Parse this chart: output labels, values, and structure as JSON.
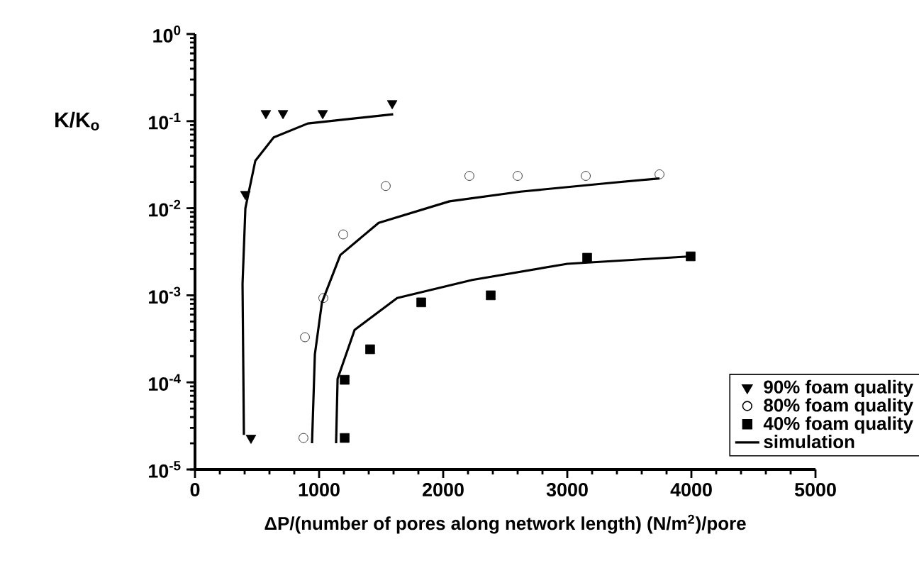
{
  "chart_data": {
    "type": "scatter",
    "xlabel": "ΔP/(number of pores along network length)  (N/m$^{2}$)/pore",
    "ylabel": "K/K$_{o}$",
    "log": "y",
    "xlim": [
      0,
      5000
    ],
    "xticks": [
      0,
      1000,
      2000,
      3000,
      4000,
      5000
    ],
    "ylim": [
      1e-05,
      1
    ],
    "yticks": [
      {
        "value": 1e-05,
        "label": "10$^{-5}$"
      },
      {
        "value": 0.0001,
        "label": "10$^{-4}$"
      },
      {
        "value": 0.001,
        "label": "10$^{-3}$"
      },
      {
        "value": 0.01,
        "label": "10$^{-2}$"
      },
      {
        "value": 0.1,
        "label": "10$^{-1}$"
      },
      {
        "value": 1,
        "label": "10$^{0}$"
      }
    ],
    "grid": false,
    "legend": "bottom right",
    "series": [
      {
        "name": "90% foam quality",
        "marker": "triangle",
        "color": "#000000",
        "x": [
          571,
          709,
          1029,
          1589,
          406,
          451
        ],
        "values": [
          0.123,
          0.123,
          0.123,
          0.16,
          0.0145,
          2.3e-05
        ]
      },
      {
        "name": "80% foam quality",
        "marker": "circle",
        "color": "#000000",
        "x": [
          874,
          886,
          1034,
          1194,
          1537,
          2211,
          2600,
          3149,
          3743
        ],
        "values": [
          2.3e-05,
          0.00033,
          0.00093,
          0.005,
          0.018,
          0.0235,
          0.0235,
          0.0235,
          0.0245
        ]
      },
      {
        "name": "40% foam quality",
        "marker": "square",
        "color": "#000000",
        "x": [
          1206,
          1206,
          1411,
          1823,
          2383,
          3160,
          3994
        ],
        "values": [
          2.3e-05,
          0.000107,
          0.00024,
          0.00083,
          0.001,
          0.0027,
          0.0028
        ]
      },
      {
        "name": "simulation",
        "type": "line",
        "marker": "none",
        "line_style": "solid",
        "color": "#000000",
        "x": [
          1597,
          909,
          634,
          486,
          406,
          383,
          394
        ],
        "values": [
          0.12,
          0.094,
          0.065,
          0.035,
          0.01,
          0.00135,
          2.5e-05
        ]
      },
      {
        "type": "line",
        "marker": "none",
        "line_style": "solid",
        "color": "#000000",
        "x": [
          943,
          966,
          1023,
          1171,
          1480,
          2051,
          2623,
          3343,
          3743
        ],
        "values": [
          2e-05,
          0.00021,
          0.00083,
          0.0029,
          0.0068,
          0.012,
          0.0155,
          0.0195,
          0.022
        ]
      },
      {
        "type": "line",
        "marker": "none",
        "line_style": "solid",
        "color": "#000000",
        "x": [
          1137,
          1149,
          1286,
          1629,
          2234,
          3000,
          3994
        ],
        "values": [
          2e-05,
          0.00011,
          0.0004,
          0.00093,
          0.0015,
          0.0023,
          0.0028
        ]
      }
    ]
  }
}
